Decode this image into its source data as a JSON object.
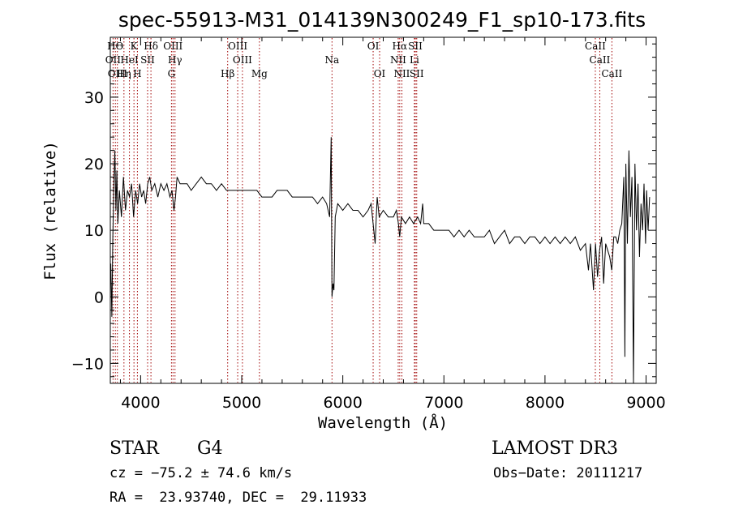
{
  "chart_data": {
    "type": "line",
    "title": "spec-55913-M31_014139N300249_F1_sp10-173.fits",
    "xlabel": "Wavelength (Å)",
    "ylabel": "Flux (relative)",
    "xlim": [
      3700,
      9100
    ],
    "ylim": [
      -13,
      39
    ],
    "xticks": [
      4000,
      5000,
      6000,
      7000,
      8000,
      9000
    ],
    "yticks": [
      -10,
      0,
      10,
      20,
      30
    ],
    "grid": false,
    "line_color": "#000000",
    "marker_color": "#a00000",
    "spectrum": [
      [
        3705,
        5
      ],
      [
        3715,
        -3
      ],
      [
        3725,
        9
      ],
      [
        3735,
        17
      ],
      [
        3745,
        22
      ],
      [
        3755,
        13
      ],
      [
        3765,
        19
      ],
      [
        3775,
        11
      ],
      [
        3790,
        16
      ],
      [
        3810,
        12
      ],
      [
        3830,
        18
      ],
      [
        3850,
        13
      ],
      [
        3870,
        16
      ],
      [
        3890,
        15
      ],
      [
        3910,
        17
      ],
      [
        3930,
        12
      ],
      [
        3950,
        16
      ],
      [
        3970,
        14
      ],
      [
        3990,
        17
      ],
      [
        4010,
        15
      ],
      [
        4030,
        16
      ],
      [
        4050,
        14
      ],
      [
        4070,
        17
      ],
      [
        4090,
        18
      ],
      [
        4110,
        16
      ],
      [
        4140,
        17
      ],
      [
        4170,
        15
      ],
      [
        4200,
        17
      ],
      [
        4230,
        16
      ],
      [
        4260,
        17
      ],
      [
        4290,
        15
      ],
      [
        4310,
        16
      ],
      [
        4330,
        13
      ],
      [
        4345,
        15
      ],
      [
        4360,
        18
      ],
      [
        4390,
        17
      ],
      [
        4420,
        17
      ],
      [
        4460,
        17
      ],
      [
        4500,
        16
      ],
      [
        4550,
        17
      ],
      [
        4600,
        18
      ],
      [
        4650,
        17
      ],
      [
        4700,
        17
      ],
      [
        4750,
        16
      ],
      [
        4800,
        17
      ],
      [
        4850,
        16
      ],
      [
        4900,
        16
      ],
      [
        4950,
        16
      ],
      [
        5000,
        16
      ],
      [
        5050,
        16
      ],
      [
        5100,
        16
      ],
      [
        5150,
        16
      ],
      [
        5200,
        15
      ],
      [
        5250,
        15
      ],
      [
        5300,
        15
      ],
      [
        5350,
        16
      ],
      [
        5400,
        16
      ],
      [
        5450,
        16
      ],
      [
        5500,
        15
      ],
      [
        5550,
        15
      ],
      [
        5600,
        15
      ],
      [
        5650,
        15
      ],
      [
        5700,
        15
      ],
      [
        5750,
        14
      ],
      [
        5800,
        15
      ],
      [
        5840,
        14
      ],
      [
        5870,
        12
      ],
      [
        5885,
        24
      ],
      [
        5893,
        0
      ],
      [
        5903,
        2
      ],
      [
        5912,
        1
      ],
      [
        5925,
        12
      ],
      [
        5950,
        14
      ],
      [
        6000,
        13
      ],
      [
        6050,
        14
      ],
      [
        6100,
        13
      ],
      [
        6150,
        13
      ],
      [
        6200,
        12
      ],
      [
        6250,
        13
      ],
      [
        6280,
        14
      ],
      [
        6300,
        11
      ],
      [
        6320,
        8
      ],
      [
        6340,
        15
      ],
      [
        6360,
        12
      ],
      [
        6400,
        13
      ],
      [
        6450,
        12
      ],
      [
        6500,
        12
      ],
      [
        6530,
        13
      ],
      [
        6550,
        11
      ],
      [
        6563,
        9
      ],
      [
        6580,
        12
      ],
      [
        6620,
        11
      ],
      [
        6660,
        12
      ],
      [
        6700,
        11
      ],
      [
        6740,
        12
      ],
      [
        6770,
        11
      ],
      [
        6790,
        14
      ],
      [
        6800,
        11
      ],
      [
        6850,
        11
      ],
      [
        6900,
        10
      ],
      [
        6950,
        10
      ],
      [
        7000,
        10
      ],
      [
        7050,
        10
      ],
      [
        7100,
        9
      ],
      [
        7150,
        10
      ],
      [
        7200,
        9
      ],
      [
        7250,
        10
      ],
      [
        7300,
        9
      ],
      [
        7350,
        9
      ],
      [
        7400,
        9
      ],
      [
        7450,
        10
      ],
      [
        7500,
        8
      ],
      [
        7550,
        9
      ],
      [
        7600,
        10
      ],
      [
        7650,
        8
      ],
      [
        7700,
        9
      ],
      [
        7750,
        9
      ],
      [
        7800,
        8
      ],
      [
        7850,
        9
      ],
      [
        7900,
        9
      ],
      [
        7950,
        8
      ],
      [
        8000,
        9
      ],
      [
        8050,
        8
      ],
      [
        8100,
        9
      ],
      [
        8150,
        8
      ],
      [
        8200,
        9
      ],
      [
        8250,
        8
      ],
      [
        8300,
        9
      ],
      [
        8350,
        7
      ],
      [
        8400,
        8
      ],
      [
        8430,
        4
      ],
      [
        8450,
        8
      ],
      [
        8480,
        1
      ],
      [
        8500,
        8
      ],
      [
        8520,
        3
      ],
      [
        8540,
        7
      ],
      [
        8560,
        9
      ],
      [
        8580,
        2
      ],
      [
        8600,
        8
      ],
      [
        8620,
        7
      ],
      [
        8640,
        6
      ],
      [
        8660,
        4
      ],
      [
        8680,
        9
      ],
      [
        8700,
        9
      ],
      [
        8720,
        8
      ],
      [
        8740,
        10
      ],
      [
        8760,
        11
      ],
      [
        8780,
        18
      ],
      [
        8790,
        -9
      ],
      [
        8800,
        20
      ],
      [
        8815,
        8
      ],
      [
        8830,
        22
      ],
      [
        8845,
        12
      ],
      [
        8860,
        18
      ],
      [
        8875,
        -13
      ],
      [
        8890,
        20
      ],
      [
        8905,
        10
      ],
      [
        8920,
        17
      ],
      [
        8935,
        6
      ],
      [
        8950,
        14
      ],
      [
        8965,
        10
      ],
      [
        8980,
        17
      ],
      [
        8995,
        8
      ],
      [
        9005,
        16
      ],
      [
        9020,
        10
      ],
      [
        9035,
        15
      ]
    ],
    "line_markers": [
      {
        "label": "HΘ",
        "x": 3750,
        "row": 0
      },
      {
        "label": "K",
        "x": 3934,
        "row": 0
      },
      {
        "label": "Hδ",
        "x": 4102,
        "row": 0
      },
      {
        "label": "OIII",
        "x": 4320,
        "row": 0
      },
      {
        "label": "OIII",
        "x": 4960,
        "row": 0
      },
      {
        "label": "OI",
        "x": 6300,
        "row": 0
      },
      {
        "label": "Hα",
        "x": 6563,
        "row": 0
      },
      {
        "label": "SII",
        "x": 6717,
        "row": 0
      },
      {
        "label": "CaII",
        "x": 8498,
        "row": 0
      },
      {
        "label": "OII",
        "x": 3727,
        "row": 1
      },
      {
        "label": "HeI",
        "x": 3889,
        "row": 1
      },
      {
        "label": "SII",
        "x": 4069,
        "row": 1
      },
      {
        "label": "Hγ",
        "x": 4340,
        "row": 1
      },
      {
        "label": "OIII",
        "x": 5007,
        "row": 1
      },
      {
        "label": "Na",
        "x": 5893,
        "row": 1
      },
      {
        "label": "NII",
        "x": 6548,
        "row": 1
      },
      {
        "label": "Li",
        "x": 6708,
        "row": 1
      },
      {
        "label": "CaII",
        "x": 8542,
        "row": 1
      },
      {
        "label": "OIII",
        "x": 3770,
        "row": 2
      },
      {
        "label": "Hη",
        "x": 3835,
        "row": 2
      },
      {
        "label": "H",
        "x": 3968,
        "row": 2
      },
      {
        "label": "G",
        "x": 4305,
        "row": 2
      },
      {
        "label": "Hβ",
        "x": 4861,
        "row": 2
      },
      {
        "label": "Mg",
        "x": 5175,
        "row": 2
      },
      {
        "label": "OI",
        "x": 6364,
        "row": 2
      },
      {
        "label": "NII",
        "x": 6584,
        "row": 2
      },
      {
        "label": "SII",
        "x": 6731,
        "row": 2
      },
      {
        "label": "CaII",
        "x": 8662,
        "row": 2
      }
    ]
  },
  "info": {
    "class": "STAR",
    "subclass": "G4",
    "survey": "LAMOST DR3",
    "cz": "cz = −75.2 ± 74.6 km/s",
    "obs_date": "Obs−Date: 20111217",
    "radec": "RA =  23.93740, DEC =  29.11933"
  }
}
